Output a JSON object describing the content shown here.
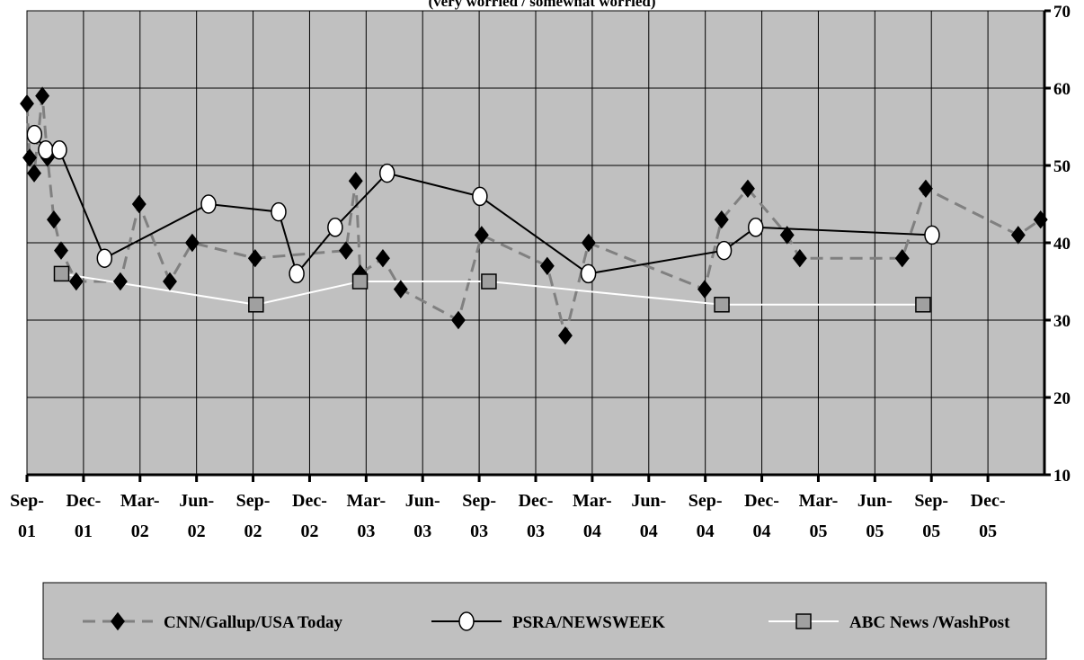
{
  "chart_data": {
    "type": "line",
    "subtitle": "(very worried / somewhat worried)",
    "xlim": [
      2001.667,
      2006.167
    ],
    "xticks": [
      {
        "value": 2001.667,
        "label": "Sep-01"
      },
      {
        "value": 2001.917,
        "label": "Dec-01"
      },
      {
        "value": 2002.167,
        "label": "Mar-02"
      },
      {
        "value": 2002.417,
        "label": "Jun-02"
      },
      {
        "value": 2002.667,
        "label": "Sep-02"
      },
      {
        "value": 2002.917,
        "label": "Dec-02"
      },
      {
        "value": 2003.167,
        "label": "Mar-03"
      },
      {
        "value": 2003.417,
        "label": "Jun-03"
      },
      {
        "value": 2003.667,
        "label": "Sep-03"
      },
      {
        "value": 2003.917,
        "label": "Dec-03"
      },
      {
        "value": 2004.167,
        "label": "Mar-04"
      },
      {
        "value": 2004.417,
        "label": "Jun-04"
      },
      {
        "value": 2004.667,
        "label": "Sep-04"
      },
      {
        "value": 2004.917,
        "label": "Dec-04"
      },
      {
        "value": 2005.167,
        "label": "Mar-05"
      },
      {
        "value": 2005.417,
        "label": "Jun-05"
      },
      {
        "value": 2005.667,
        "label": "Sep-05"
      },
      {
        "value": 2005.917,
        "label": "Dec-05"
      }
    ],
    "ylim": [
      10,
      70
    ],
    "yticks": [
      10,
      20,
      30,
      40,
      50,
      60,
      70
    ],
    "grid": true,
    "background": "#c0c0c0",
    "legend": "bottom",
    "series": [
      {
        "name": "CNN/Gallup/USA Today",
        "color": "#808080",
        "marker": "diamond",
        "marker_color": "#000000",
        "dashed": true,
        "x": [
          2001.667,
          2001.679,
          2001.699,
          2001.735,
          2001.758,
          2001.786,
          2001.818,
          2001.885,
          2002.08,
          2002.163,
          2002.299,
          2002.398,
          2002.676,
          2003.078,
          2003.121,
          2003.141,
          2003.241,
          2003.32,
          2003.575,
          2003.678,
          2003.968,
          2004.048,
          2004.151,
          2004.664,
          2004.739,
          2004.855,
          2005.029,
          2005.085,
          2005.538,
          2005.642,
          2006.051,
          2006.15
        ],
        "values": [
          58,
          51,
          49,
          59,
          51,
          43,
          39,
          35,
          35,
          45,
          35,
          40,
          38,
          39,
          48,
          36,
          38,
          34,
          30,
          41,
          37,
          28,
          40,
          34,
          43,
          47,
          41,
          38,
          38,
          47,
          41,
          43
        ]
      },
      {
        "name": "PSRA/NEWSWEEK",
        "color": "#000000",
        "marker": "circle",
        "marker_color": "#ffffff",
        "dashed": false,
        "x": [
          2001.7,
          2001.75,
          2001.81,
          2002.01,
          2002.47,
          2002.78,
          2002.86,
          2003.03,
          2003.26,
          2003.67,
          2004.15,
          2004.75,
          2004.89,
          2005.67
        ],
        "values": [
          54,
          52,
          52,
          38,
          45,
          44,
          36,
          42,
          49,
          46,
          36,
          39,
          42,
          41
        ]
      },
      {
        "name": "ABC News /WashPost",
        "color": "#ffffff",
        "marker": "square",
        "marker_color": "#a0a0a0",
        "dashed": false,
        "x": [
          2001.82,
          2002.68,
          2003.14,
          2003.71,
          2004.74,
          2005.63
        ],
        "values": [
          36,
          32,
          35,
          35,
          32,
          32
        ]
      }
    ]
  }
}
